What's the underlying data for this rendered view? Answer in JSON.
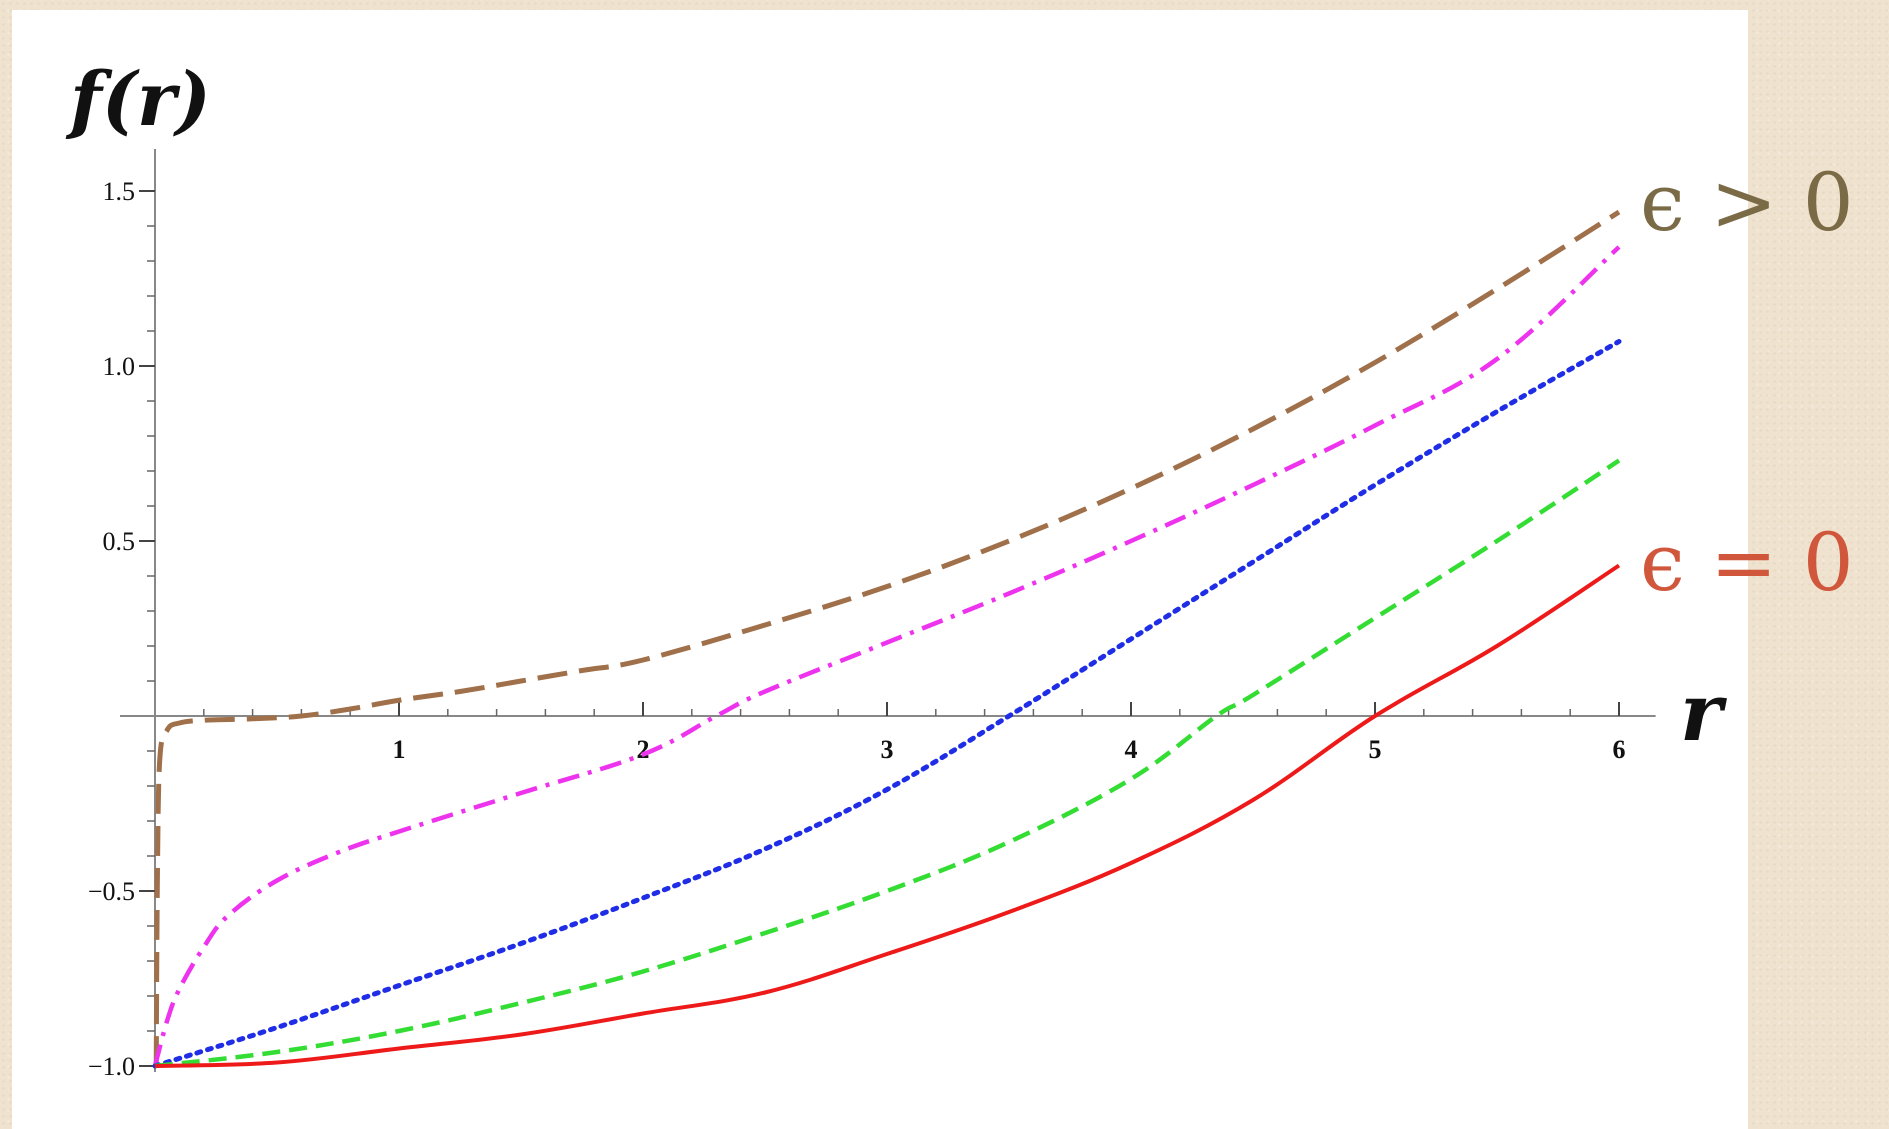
{
  "chart_data": {
    "type": "line",
    "title": "",
    "xlabel": "r",
    "ylabel": "f(r)",
    "xlim": [
      0,
      6.15
    ],
    "ylim": [
      -1.0,
      1.62
    ],
    "x_ticks": [
      {
        "value": 1,
        "label": "1"
      },
      {
        "value": 2,
        "label": "2"
      },
      {
        "value": 3,
        "label": "3"
      },
      {
        "value": 4,
        "label": "4"
      },
      {
        "value": 5,
        "label": "5"
      },
      {
        "value": 6,
        "label": "6"
      }
    ],
    "y_ticks": [
      {
        "value": 1.5,
        "label": "1.5"
      },
      {
        "value": 1.0,
        "label": "1.0"
      },
      {
        "value": 0.5,
        "label": "0.5"
      },
      {
        "value": -0.5,
        "label": "−0.5"
      },
      {
        "value": -1.0,
        "label": "−1.0"
      }
    ],
    "grid": false,
    "legend": "none",
    "annotations": [
      {
        "text": "ϵ > 0",
        "color": "#7a6a45",
        "anchor_value": [
          6,
          1.44
        ]
      },
      {
        "text": "ϵ = 0",
        "color": "#d0573b",
        "anchor_value": [
          6,
          0.43
        ]
      }
    ],
    "series": [
      {
        "color": "#a0704a",
        "dash": "long-dash",
        "points": [
          [
            0.005,
            -1.0
          ],
          [
            0.01,
            -0.45
          ],
          [
            0.02,
            -0.12
          ],
          [
            0.05,
            -0.04
          ],
          [
            0.1,
            -0.02
          ],
          [
            0.2,
            -0.012
          ],
          [
            0.4,
            -0.008
          ],
          [
            0.6,
            0.0
          ],
          [
            0.8,
            0.02
          ],
          [
            1.0,
            0.045
          ],
          [
            1.25,
            0.07
          ],
          [
            1.5,
            0.1
          ],
          [
            1.75,
            0.13
          ],
          [
            2.0,
            0.16
          ],
          [
            2.5,
            0.26
          ],
          [
            3.0,
            0.37
          ],
          [
            3.5,
            0.5
          ],
          [
            4.0,
            0.65
          ],
          [
            4.5,
            0.82
          ],
          [
            5.0,
            1.01
          ],
          [
            5.5,
            1.22
          ],
          [
            6.0,
            1.44
          ]
        ]
      },
      {
        "color": "#ee33ee",
        "dash": "dash-dot",
        "points": [
          [
            0.0,
            -1.0
          ],
          [
            0.05,
            -0.87
          ],
          [
            0.1,
            -0.78
          ],
          [
            0.2,
            -0.66
          ],
          [
            0.3,
            -0.57
          ],
          [
            0.5,
            -0.47
          ],
          [
            0.75,
            -0.39
          ],
          [
            1.0,
            -0.33
          ],
          [
            1.5,
            -0.22
          ],
          [
            2.0,
            -0.11
          ],
          [
            2.3,
            0.0
          ],
          [
            2.5,
            0.07
          ],
          [
            3.0,
            0.21
          ],
          [
            3.5,
            0.35
          ],
          [
            4.0,
            0.5
          ],
          [
            4.5,
            0.66
          ],
          [
            5.0,
            0.83
          ],
          [
            5.5,
            1.02
          ],
          [
            6.0,
            1.34
          ]
        ]
      },
      {
        "color": "#1f2ee6",
        "dash": "dot",
        "points": [
          [
            0.0,
            -1.0
          ],
          [
            0.5,
            -0.89
          ],
          [
            1.0,
            -0.77
          ],
          [
            1.5,
            -0.65
          ],
          [
            2.0,
            -0.52
          ],
          [
            2.5,
            -0.38
          ],
          [
            3.0,
            -0.21
          ],
          [
            3.5,
            0.0
          ],
          [
            4.0,
            0.22
          ],
          [
            4.5,
            0.44
          ],
          [
            5.0,
            0.66
          ],
          [
            5.5,
            0.87
          ],
          [
            6.0,
            1.07
          ]
        ]
      },
      {
        "color": "#33dd33",
        "dash": "dash",
        "points": [
          [
            0.0,
            -1.0
          ],
          [
            0.5,
            -0.96
          ],
          [
            1.0,
            -0.9
          ],
          [
            1.5,
            -0.82
          ],
          [
            2.0,
            -0.73
          ],
          [
            2.5,
            -0.62
          ],
          [
            3.0,
            -0.5
          ],
          [
            3.5,
            -0.36
          ],
          [
            4.0,
            -0.18
          ],
          [
            4.35,
            0.0
          ],
          [
            4.5,
            0.06
          ],
          [
            5.0,
            0.28
          ],
          [
            5.5,
            0.5
          ],
          [
            6.0,
            0.73
          ]
        ]
      },
      {
        "color": "#ee1a1a",
        "dash": "solid",
        "points": [
          [
            0.0,
            -1.0
          ],
          [
            0.5,
            -0.99
          ],
          [
            1.0,
            -0.95
          ],
          [
            1.5,
            -0.91
          ],
          [
            2.0,
            -0.85
          ],
          [
            2.5,
            -0.79
          ],
          [
            3.0,
            -0.68
          ],
          [
            3.5,
            -0.56
          ],
          [
            4.0,
            -0.42
          ],
          [
            4.5,
            -0.24
          ],
          [
            5.0,
            0.0
          ],
          [
            5.5,
            0.2
          ],
          [
            6.0,
            0.43
          ]
        ]
      }
    ]
  }
}
